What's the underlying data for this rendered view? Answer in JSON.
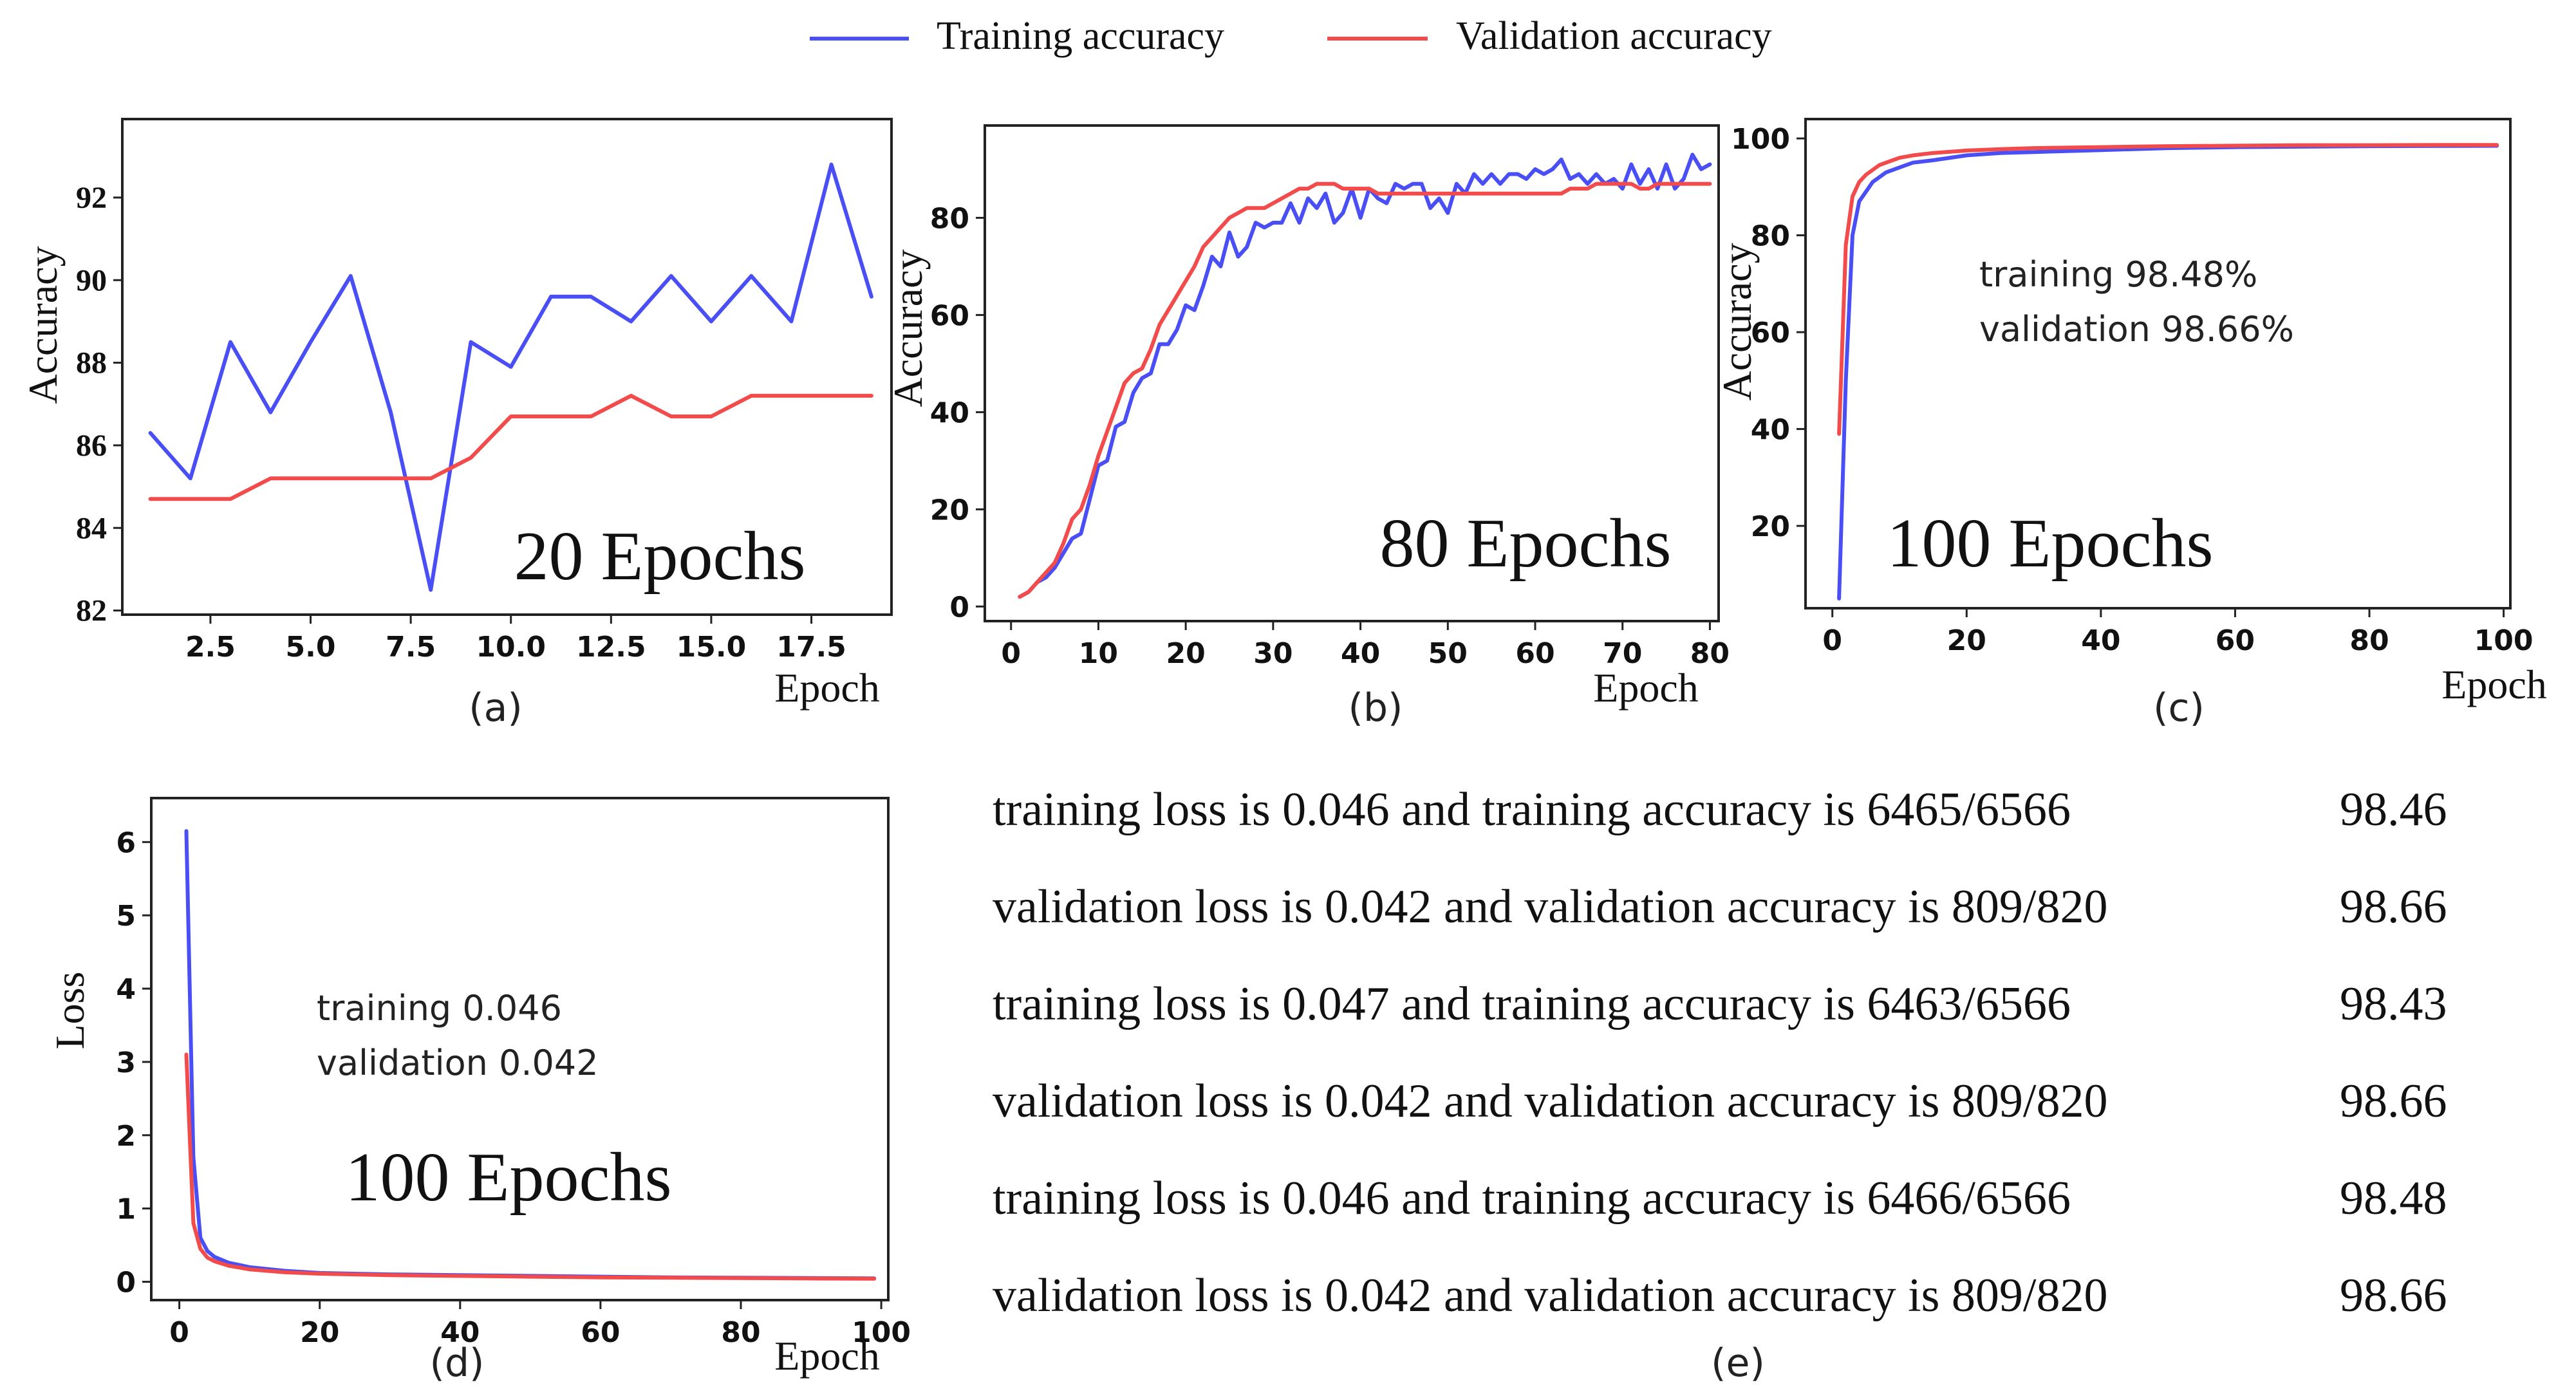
{
  "legend": {
    "training_label": "Training accuracy",
    "validation_label": "Validation accuracy",
    "training_color": "#4a4ef5",
    "validation_color": "#f24b4b"
  },
  "chart_data": [
    {
      "id": "a",
      "type": "line",
      "panel_label": "(a)",
      "annotation": "20 Epochs",
      "ylabel": "Accuracy",
      "xlabel": "Epoch",
      "xlim": [
        0.3,
        19.5
      ],
      "ylim": [
        81.9,
        93.9
      ],
      "xticks": [
        2.5,
        5.0,
        7.5,
        10.0,
        12.5,
        15.0,
        17.5
      ],
      "xtick_labels": [
        "2.5",
        "5.0",
        "7.5",
        "10.0",
        "12.5",
        "15.0",
        "17.5"
      ],
      "yticks": [
        82,
        84,
        86,
        88,
        90,
        92
      ],
      "ytick_labels": [
        "82",
        "84",
        "86",
        "88",
        "90",
        "92"
      ],
      "ytick_font": "serif",
      "series": [
        {
          "name": "Training accuracy",
          "x": [
            1,
            2,
            3,
            4,
            5,
            6,
            7,
            8,
            9,
            10,
            11,
            12,
            13,
            14,
            15,
            16,
            17,
            18,
            19
          ],
          "values": [
            86.3,
            85.2,
            88.5,
            86.8,
            88.5,
            90.1,
            86.8,
            82.5,
            88.5,
            87.9,
            89.6,
            89.6,
            89.0,
            90.1,
            89.0,
            90.1,
            89.0,
            92.8,
            89.6
          ]
        },
        {
          "name": "Validation accuracy",
          "x": [
            1,
            2,
            3,
            4,
            5,
            6,
            7,
            8,
            9,
            10,
            11,
            12,
            13,
            14,
            15,
            16,
            17,
            18,
            19
          ],
          "values": [
            84.7,
            84.7,
            84.7,
            85.2,
            85.2,
            85.2,
            85.2,
            85.2,
            85.7,
            86.7,
            86.7,
            86.7,
            87.2,
            86.7,
            86.7,
            87.2,
            87.2,
            87.2,
            87.2
          ]
        }
      ]
    },
    {
      "id": "b",
      "type": "line",
      "panel_label": "(b)",
      "annotation": "80 Epochs",
      "ylabel": "Accuracy",
      "xlabel": "Epoch",
      "xlim": [
        -3,
        81
      ],
      "ylim": [
        -3,
        99
      ],
      "xticks": [
        0,
        10,
        20,
        30,
        40,
        50,
        60,
        70,
        80
      ],
      "xtick_labels": [
        "0",
        "10",
        "20",
        "30",
        "40",
        "50",
        "60",
        "70",
        "80"
      ],
      "yticks": [
        0,
        20,
        40,
        60,
        80
      ],
      "ytick_labels": [
        "0",
        "20",
        "40",
        "60",
        "80"
      ],
      "ytick_font": "sans",
      "series": [
        {
          "name": "Training accuracy",
          "x": [
            1,
            2,
            3,
            4,
            5,
            6,
            7,
            8,
            9,
            10,
            11,
            12,
            13,
            14,
            15,
            16,
            17,
            18,
            19,
            20,
            21,
            22,
            23,
            24,
            25,
            26,
            27,
            28,
            29,
            30,
            31,
            32,
            33,
            34,
            35,
            36,
            37,
            38,
            39,
            40,
            41,
            42,
            43,
            44,
            45,
            46,
            47,
            48,
            49,
            50,
            51,
            52,
            53,
            54,
            55,
            56,
            57,
            58,
            59,
            60,
            61,
            62,
            63,
            64,
            65,
            66,
            67,
            68,
            69,
            70,
            71,
            72,
            73,
            74,
            75,
            76,
            77,
            78,
            79,
            80
          ],
          "values": [
            2,
            3,
            5,
            6,
            8,
            11,
            14,
            15,
            22,
            29,
            30,
            37,
            38,
            44,
            47,
            48,
            54,
            54,
            57,
            62,
            61,
            66,
            72,
            70,
            77,
            72,
            74,
            79,
            78,
            79,
            79,
            83,
            79,
            84,
            82,
            85,
            79,
            81,
            86,
            80,
            86,
            84,
            83,
            87,
            86,
            87,
            87,
            82,
            84,
            81,
            87,
            85,
            89,
            87,
            89,
            87,
            89,
            89,
            88,
            90,
            89,
            90,
            92,
            88,
            89,
            87,
            89,
            87,
            88,
            86,
            91,
            87,
            90,
            86,
            91,
            86,
            88,
            93,
            90,
            91
          ]
        },
        {
          "name": "Validation accuracy",
          "x": [
            1,
            2,
            3,
            4,
            5,
            6,
            7,
            8,
            9,
            10,
            11,
            12,
            13,
            14,
            15,
            16,
            17,
            18,
            19,
            20,
            21,
            22,
            23,
            24,
            25,
            26,
            27,
            28,
            29,
            30,
            31,
            32,
            33,
            34,
            35,
            36,
            37,
            38,
            39,
            40,
            41,
            42,
            43,
            44,
            45,
            46,
            47,
            48,
            49,
            50,
            51,
            52,
            53,
            54,
            55,
            56,
            57,
            58,
            59,
            60,
            61,
            62,
            63,
            64,
            65,
            66,
            67,
            68,
            69,
            70,
            71,
            72,
            73,
            74,
            75,
            76,
            77,
            78,
            79,
            80
          ],
          "values": [
            2,
            3,
            5,
            7,
            9,
            13,
            18,
            20,
            25,
            31,
            36,
            41,
            46,
            48,
            49,
            53,
            58,
            61,
            64,
            67,
            70,
            74,
            76,
            78,
            80,
            81,
            82,
            82,
            82,
            83,
            84,
            85,
            86,
            86,
            87,
            87,
            87,
            86,
            86,
            86,
            86,
            85,
            85,
            85,
            85,
            85,
            85,
            85,
            85,
            85,
            85,
            85,
            85,
            85,
            85,
            85,
            85,
            85,
            85,
            85,
            85,
            85,
            85,
            86,
            86,
            86,
            87,
            87,
            87,
            87,
            87,
            86,
            86,
            87,
            87,
            87,
            87,
            87,
            87,
            87
          ]
        }
      ]
    },
    {
      "id": "c",
      "type": "line",
      "panel_label": "(c)",
      "annotation": "100 Epochs",
      "inset_text": [
        "training 98.48%",
        "validation 98.66%"
      ],
      "ylabel": "Accuracy",
      "xlabel": "Epoch",
      "xlim": [
        -4,
        101
      ],
      "ylim": [
        3,
        104
      ],
      "xticks": [
        0,
        20,
        40,
        60,
        80,
        100
      ],
      "xtick_labels": [
        "0",
        "20",
        "40",
        "60",
        "80",
        "100"
      ],
      "yticks": [
        20,
        40,
        60,
        80,
        100
      ],
      "ytick_labels": [
        "20",
        "40",
        "60",
        "80",
        "100"
      ],
      "ytick_font": "sans",
      "series": [
        {
          "name": "Training accuracy",
          "x": [
            1,
            2,
            3,
            4,
            5,
            6,
            7,
            8,
            10,
            12,
            15,
            20,
            25,
            30,
            40,
            50,
            60,
            70,
            80,
            90,
            99
          ],
          "values": [
            5,
            50,
            80,
            87,
            89,
            91,
            92,
            93,
            94,
            95,
            95.5,
            96.5,
            97,
            97.2,
            97.6,
            98,
            98.2,
            98.3,
            98.4,
            98.45,
            98.48
          ]
        },
        {
          "name": "Validation accuracy",
          "x": [
            1,
            2,
            3,
            4,
            5,
            6,
            7,
            8,
            10,
            12,
            15,
            20,
            25,
            30,
            40,
            50,
            60,
            70,
            80,
            90,
            99
          ],
          "values": [
            39,
            78,
            88,
            91,
            92.5,
            93.5,
            94.5,
            95,
            96,
            96.5,
            97,
            97.5,
            97.8,
            98,
            98.2,
            98.4,
            98.5,
            98.6,
            98.6,
            98.66,
            98.66
          ]
        }
      ]
    },
    {
      "id": "d",
      "type": "line",
      "panel_label": "(d)",
      "annotation": "100 Epochs",
      "inset_text": [
        "training 0.046",
        "validation 0.042"
      ],
      "ylabel": "Loss",
      "xlabel": "Epoch",
      "xlim": [
        -4,
        101
      ],
      "ylim": [
        -0.25,
        6.6
      ],
      "xticks": [
        0,
        20,
        40,
        60,
        80,
        100
      ],
      "xtick_labels": [
        "0",
        "20",
        "40",
        "60",
        "80",
        "100"
      ],
      "yticks": [
        0,
        1,
        2,
        3,
        4,
        5,
        6
      ],
      "ytick_labels": [
        "0",
        "1",
        "2",
        "3",
        "4",
        "5",
        "6"
      ],
      "ytick_font": "sans",
      "series": [
        {
          "name": "Training accuracy",
          "x": [
            1,
            2,
            3,
            4,
            5,
            7,
            10,
            15,
            20,
            30,
            40,
            50,
            60,
            70,
            80,
            90,
            99
          ],
          "values": [
            6.15,
            1.7,
            0.6,
            0.42,
            0.34,
            0.26,
            0.2,
            0.15,
            0.12,
            0.1,
            0.09,
            0.08,
            0.07,
            0.06,
            0.055,
            0.05,
            0.046
          ]
        },
        {
          "name": "Validation accuracy",
          "x": [
            1,
            2,
            3,
            4,
            5,
            7,
            10,
            15,
            20,
            30,
            40,
            50,
            60,
            70,
            80,
            90,
            99
          ],
          "values": [
            3.1,
            0.8,
            0.45,
            0.33,
            0.28,
            0.22,
            0.17,
            0.13,
            0.11,
            0.09,
            0.08,
            0.07,
            0.06,
            0.055,
            0.05,
            0.045,
            0.042
          ]
        }
      ]
    },
    {
      "id": "e",
      "type": "table",
      "panel_label": "(e)",
      "rows": [
        {
          "text": "training loss is 0.046 and training accuracy is 6465/6566",
          "value": "98.46"
        },
        {
          "text": "validation loss is 0.042 and validation accuracy is 809/820",
          "value": "98.66"
        },
        {
          "text": "training loss is 0.047 and training accuracy is 6463/6566",
          "value": "98.43"
        },
        {
          "text": "validation loss is 0.042 and validation accuracy is 809/820",
          "value": "98.66"
        },
        {
          "text": "training loss is 0.046 and training accuracy is 6466/6566",
          "value": "98.48"
        },
        {
          "text": "validation loss is 0.042 and validation accuracy is 809/820",
          "value": "98.66"
        }
      ]
    }
  ]
}
